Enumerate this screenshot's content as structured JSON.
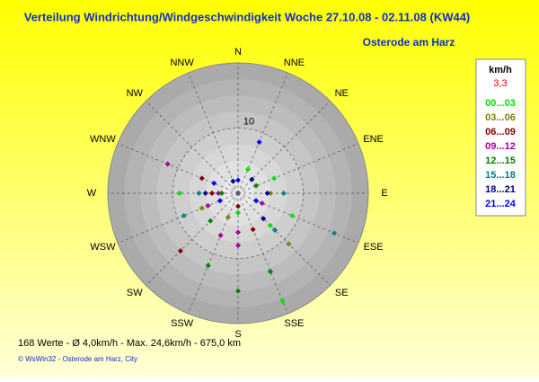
{
  "chart_data": {
    "type": "polar-scatter",
    "title": "Verteilung Windrichtung/Windgeschwindigkeit  Woche 27.10.08 - 02.11.08 (KW44)",
    "subtitle": "Osterode am Harz",
    "directions": [
      "N",
      "NNE",
      "NE",
      "ENE",
      "E",
      "ESE",
      "SE",
      "SSE",
      "S",
      "SSW",
      "SW",
      "WSW",
      "W",
      "WNW",
      "NW",
      "NNW"
    ],
    "rlim": [
      0,
      20
    ],
    "rticks": [
      10
    ],
    "legend_title": "km/h",
    "legend_calm": "3,3",
    "series": [
      {
        "name": "00...03",
        "color": "#00e000",
        "theta": [
          112.5,
          157.5,
          270,
          67.5,
          22.5,
          180,
          135
        ],
        "r": [
          9,
          17.9,
          9,
          6,
          4,
          3,
          7
        ]
      },
      {
        "name": "03...06",
        "color": "#808000",
        "theta": [
          135,
          247.5,
          90,
          202.5
        ],
        "r": [
          11,
          6,
          5,
          4
        ]
      },
      {
        "name": "06...09",
        "color": "#800000",
        "theta": [
          225,
          270,
          292.5,
          157.5,
          180
        ],
        "r": [
          12.5,
          4,
          6,
          6,
          2
        ]
      },
      {
        "name": "09...12",
        "color": "#a000a0",
        "theta": [
          180,
          292.5,
          202.5,
          247.5,
          112.5,
          270,
          180
        ],
        "r": [
          8,
          11.7,
          7,
          5,
          4,
          3,
          6
        ]
      },
      {
        "name": "12...15",
        "color": "#008000",
        "theta": [
          180,
          157.5,
          202.5,
          270,
          67.5,
          225
        ],
        "r": [
          15,
          13,
          12,
          2.5,
          3,
          6
        ]
      },
      {
        "name": "15...18",
        "color": "#008080",
        "theta": [
          112.5,
          247.5,
          90,
          135,
          270
        ],
        "r": [
          16,
          9,
          7,
          8,
          6
        ]
      },
      {
        "name": "18...21",
        "color": "#000080",
        "theta": [
          270,
          90,
          135,
          337.5,
          45
        ],
        "r": [
          5,
          4.5,
          5.5,
          2,
          3
        ]
      },
      {
        "name": "21...24",
        "color": "#0000ff",
        "theta": [
          22.5,
          0,
          247.5,
          292.5,
          112.5
        ],
        "r": [
          8.5,
          2,
          3,
          4,
          3
        ]
      }
    ],
    "footer": "168 Werte   -   Ø 4,0km/h   -   Max. 24,6km/h   -   675,0 km",
    "copyright": "© WsWin32  -  Osterode am Harz, City"
  }
}
